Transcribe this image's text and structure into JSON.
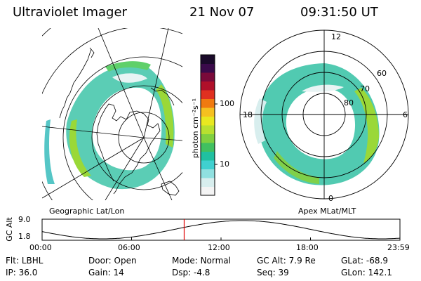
{
  "header": {
    "title": "Ultraviolet Imager",
    "date": "21 Nov 07",
    "time": "09:31:50 UT"
  },
  "colorbar": {
    "unit": "photon cm⁻²s⁻¹",
    "ticks": [
      "100",
      "10"
    ],
    "colors": [
      "#1a0a2a",
      "#3a0a4a",
      "#7a0a3a",
      "#b0102a",
      "#e03020",
      "#f07a10",
      "#f5c020",
      "#e8e820",
      "#b8e030",
      "#80d040",
      "#40c060",
      "#20c0a0",
      "#40d0d0",
      "#90e0e0",
      "#d8eeee",
      "#f4f4f4"
    ]
  },
  "left_panel": {
    "label": "Geographic Lat/Lon"
  },
  "right_panel": {
    "label": "Apex MLat/MLT",
    "mlt_labels": {
      "top": "12",
      "left": "18",
      "right": "6",
      "bottom": "0"
    },
    "lat_labels": [
      "60",
      "70",
      "80"
    ]
  },
  "altitude_plot": {
    "ylabel": "GC Alt",
    "yticks": [
      "9.0",
      "1.8"
    ],
    "xticks": [
      "00:00",
      "06:00",
      "12:00",
      "18:00",
      "23:59"
    ],
    "current_time_fraction": 0.397
  },
  "status": {
    "row1": [
      {
        "key": "Flt:",
        "value": "LBHL"
      },
      {
        "key": "Door:",
        "value": "Open"
      },
      {
        "key": "Mode:",
        "value": "Normal"
      },
      {
        "key": "GC Alt:",
        "value": "7.9 Re"
      },
      {
        "key": "GLat:",
        "value": "-68.9"
      }
    ],
    "row2": [
      {
        "key": "IP:",
        "value": "36.0"
      },
      {
        "key": "Gain:",
        "value": "14"
      },
      {
        "key": "Dsp:",
        "value": "-4.8"
      },
      {
        "key": "Seq:",
        "value": "39"
      },
      {
        "key": "GLon:",
        "value": "142.1"
      }
    ]
  }
}
